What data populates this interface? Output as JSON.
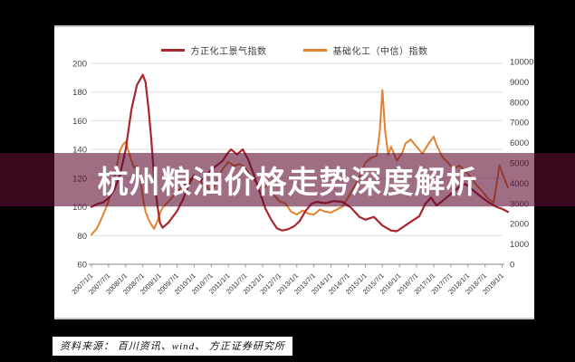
{
  "banner": {
    "title": "杭州粮油价格走势深度解析"
  },
  "source": {
    "text": "资料来源： 百川资讯、wind、 方正证券研究所"
  },
  "colors": {
    "background": "#000000",
    "banner_overlay": "rgba(95,12,50,0.60)",
    "series_red": "#a9262c",
    "series_orange": "#e0822f",
    "gridline": "#dcdcdc",
    "axis_line": "#9a9a9a",
    "axis_text": "#404040"
  },
  "chart_data": {
    "type": "line",
    "grid": true,
    "legend_position": "top",
    "x_axis": {
      "tick_labels": [
        "2007/1/1",
        "2007/7/1",
        "2008/1/1",
        "2008/7/1",
        "2009/1/1",
        "2009/7/1",
        "2010/1/1",
        "2010/7/1",
        "2011/1/1",
        "2011/7/1",
        "2012/1/1",
        "2012/7/1",
        "2013/1/1",
        "2013/7/1",
        "2014/1/1",
        "2014/7/1",
        "2015/1/1",
        "2015/7/1",
        "2016/1/1",
        "2016/7/1",
        "2017/1/1",
        "2017/7/1",
        "2018/1/1",
        "2018/7/1",
        "2019/1/1"
      ]
    },
    "left_axis": {
      "min": 60,
      "max": 200,
      "ticks": [
        200,
        180,
        160,
        140,
        120,
        100,
        80,
        60
      ]
    },
    "right_axis": {
      "min": 0,
      "max": 10000,
      "ticks": [
        10000,
        9000,
        8000,
        7000,
        6000,
        5000,
        4000,
        3000,
        2000,
        1000,
        0
      ]
    },
    "series": [
      {
        "name": "方正化工景气指数",
        "axis": "left",
        "color": "#a9262c",
        "points": [
          [
            2007.0,
            100
          ],
          [
            2007.17,
            102
          ],
          [
            2007.33,
            103
          ],
          [
            2007.5,
            106
          ],
          [
            2007.67,
            112
          ],
          [
            2007.83,
            122
          ],
          [
            2008.0,
            140
          ],
          [
            2008.17,
            168
          ],
          [
            2008.33,
            185
          ],
          [
            2008.5,
            192
          ],
          [
            2008.58,
            187
          ],
          [
            2008.67,
            168
          ],
          [
            2008.75,
            146
          ],
          [
            2008.83,
            120
          ],
          [
            2008.92,
            102
          ],
          [
            2009.0,
            89
          ],
          [
            2009.08,
            85.5
          ],
          [
            2009.25,
            89
          ],
          [
            2009.5,
            97
          ],
          [
            2009.67,
            105
          ],
          [
            2009.83,
            115
          ],
          [
            2010.0,
            122
          ],
          [
            2010.17,
            118
          ],
          [
            2010.33,
            121
          ],
          [
            2010.5,
            126
          ],
          [
            2010.67,
            129
          ],
          [
            2010.83,
            132
          ],
          [
            2011.0,
            138
          ],
          [
            2011.08,
            140
          ],
          [
            2011.25,
            136.5
          ],
          [
            2011.42,
            140
          ],
          [
            2011.58,
            133
          ],
          [
            2011.75,
            122
          ],
          [
            2011.92,
            110
          ],
          [
            2012.08,
            99
          ],
          [
            2012.25,
            91
          ],
          [
            2012.42,
            85
          ],
          [
            2012.58,
            83.5
          ],
          [
            2012.75,
            84.5
          ],
          [
            2012.92,
            86.5
          ],
          [
            2013.08,
            90
          ],
          [
            2013.25,
            97
          ],
          [
            2013.42,
            102
          ],
          [
            2013.58,
            103.5
          ],
          [
            2013.83,
            102.5
          ],
          [
            2014.08,
            104
          ],
          [
            2014.33,
            103.5
          ],
          [
            2014.58,
            99.5
          ],
          [
            2014.83,
            93
          ],
          [
            2015.0,
            91
          ],
          [
            2015.25,
            93
          ],
          [
            2015.5,
            87
          ],
          [
            2015.75,
            83.5
          ],
          [
            2015.92,
            83
          ],
          [
            2016.17,
            87
          ],
          [
            2016.42,
            91
          ],
          [
            2016.58,
            93.5
          ],
          [
            2016.75,
            102
          ],
          [
            2016.92,
            106.5
          ],
          [
            2017.08,
            101
          ],
          [
            2017.25,
            104
          ],
          [
            2017.5,
            109
          ],
          [
            2017.75,
            114
          ],
          [
            2017.92,
            116
          ],
          [
            2018.08,
            113
          ],
          [
            2018.33,
            108
          ],
          [
            2018.58,
            103.5
          ],
          [
            2018.83,
            100
          ],
          [
            2019.0,
            98.5
          ],
          [
            2019.17,
            96.5
          ]
        ]
      },
      {
        "name": "基础化工（中信）指数",
        "axis": "right",
        "color": "#e0822f",
        "points": [
          [
            2007.0,
            1450
          ],
          [
            2007.17,
            1800
          ],
          [
            2007.33,
            2400
          ],
          [
            2007.5,
            3100
          ],
          [
            2007.67,
            4300
          ],
          [
            2007.83,
            5600
          ],
          [
            2007.92,
            5900
          ],
          [
            2008.0,
            6050
          ],
          [
            2008.08,
            5600
          ],
          [
            2008.17,
            5100
          ],
          [
            2008.25,
            4750
          ],
          [
            2008.33,
            4850
          ],
          [
            2008.42,
            4300
          ],
          [
            2008.5,
            3300
          ],
          [
            2008.58,
            2600
          ],
          [
            2008.67,
            2200
          ],
          [
            2008.75,
            1950
          ],
          [
            2008.83,
            1750
          ],
          [
            2008.92,
            2100
          ],
          [
            2009.0,
            2500
          ],
          [
            2009.08,
            2800
          ],
          [
            2009.25,
            3100
          ],
          [
            2009.42,
            3400
          ],
          [
            2009.58,
            3700
          ],
          [
            2009.75,
            4000
          ],
          [
            2009.92,
            4250
          ],
          [
            2010.0,
            4300
          ],
          [
            2010.17,
            4100
          ],
          [
            2010.33,
            3900
          ],
          [
            2010.5,
            3600
          ],
          [
            2010.67,
            4100
          ],
          [
            2010.83,
            4700
          ],
          [
            2011.0,
            5050
          ],
          [
            2011.17,
            4850
          ],
          [
            2011.33,
            4950
          ],
          [
            2011.5,
            4750
          ],
          [
            2011.67,
            4300
          ],
          [
            2011.83,
            4000
          ],
          [
            2012.0,
            3700
          ],
          [
            2012.17,
            3950
          ],
          [
            2012.33,
            3400
          ],
          [
            2012.5,
            3100
          ],
          [
            2012.67,
            3000
          ],
          [
            2012.83,
            2600
          ],
          [
            2013.0,
            2450
          ],
          [
            2013.17,
            2650
          ],
          [
            2013.33,
            2500
          ],
          [
            2013.5,
            2450
          ],
          [
            2013.67,
            2700
          ],
          [
            2013.83,
            2600
          ],
          [
            2014.0,
            2550
          ],
          [
            2014.17,
            2700
          ],
          [
            2014.33,
            2850
          ],
          [
            2014.5,
            3300
          ],
          [
            2014.67,
            3800
          ],
          [
            2014.83,
            4300
          ],
          [
            2015.0,
            5000
          ],
          [
            2015.17,
            5250
          ],
          [
            2015.33,
            5350
          ],
          [
            2015.42,
            6500
          ],
          [
            2015.5,
            8600
          ],
          [
            2015.58,
            6600
          ],
          [
            2015.67,
            5400
          ],
          [
            2015.75,
            5800
          ],
          [
            2015.92,
            5100
          ],
          [
            2016.08,
            5500
          ],
          [
            2016.17,
            5950
          ],
          [
            2016.33,
            6150
          ],
          [
            2016.5,
            5800
          ],
          [
            2016.67,
            5450
          ],
          [
            2016.83,
            5900
          ],
          [
            2017.0,
            6300
          ],
          [
            2017.08,
            5900
          ],
          [
            2017.25,
            5300
          ],
          [
            2017.42,
            5000
          ],
          [
            2017.58,
            4700
          ],
          [
            2017.75,
            4870
          ],
          [
            2017.92,
            4600
          ],
          [
            2018.08,
            4300
          ],
          [
            2018.25,
            3900
          ],
          [
            2018.42,
            3600
          ],
          [
            2018.58,
            3250
          ],
          [
            2018.75,
            3050
          ],
          [
            2018.92,
            4870
          ],
          [
            2019.08,
            4150
          ],
          [
            2019.17,
            3790
          ]
        ]
      }
    ]
  }
}
